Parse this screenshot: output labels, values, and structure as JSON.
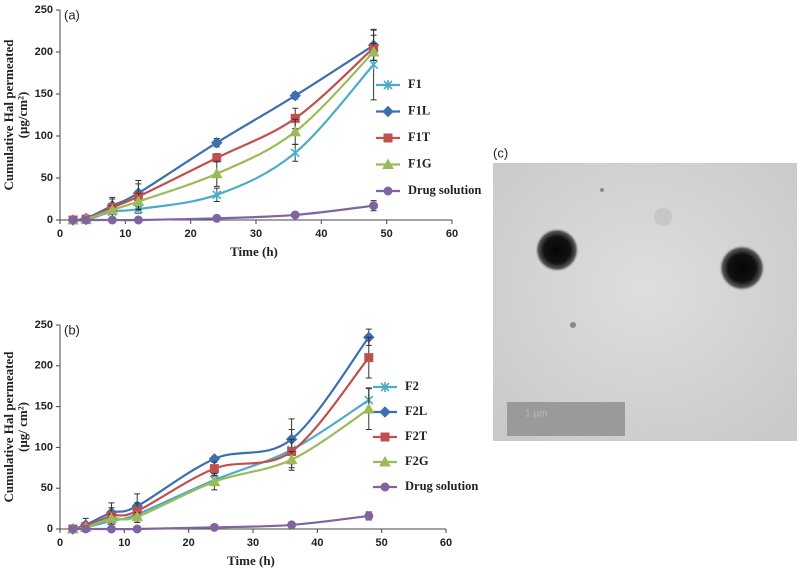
{
  "chart_data": [
    {
      "type": "line",
      "panel": "(a)",
      "xlabel": "Time (h)",
      "ylabel": [
        "Cumulative  Hal permeated",
        "(μg/cm²)"
      ],
      "x": [
        2,
        4,
        8,
        12,
        24,
        36,
        48
      ],
      "xlim": [
        0,
        60
      ],
      "xticks": [
        0,
        10,
        20,
        30,
        40,
        50,
        60
      ],
      "ylim": [
        0,
        250
      ],
      "yticks": [
        0,
        50,
        100,
        150,
        200,
        250
      ],
      "series": [
        {
          "name": "F1",
          "color": "#4bacc6",
          "marker": "star",
          "values": [
            0,
            0,
            10,
            13,
            30,
            80,
            185
          ],
          "errors": [
            0,
            0,
            3,
            5,
            8,
            10,
            42
          ]
        },
        {
          "name": "F1L",
          "color": "#3d6fb0",
          "marker": "diamond",
          "values": [
            0,
            2,
            17,
            32,
            92,
            148,
            208
          ],
          "errors": [
            0,
            2,
            8,
            15,
            5,
            4,
            18
          ]
        },
        {
          "name": "F1T",
          "color": "#c0504d",
          "marker": "square",
          "values": [
            0,
            1,
            15,
            28,
            74,
            121,
            205
          ],
          "errors": [
            0,
            1,
            12,
            15,
            5,
            12,
            15
          ]
        },
        {
          "name": "F1G",
          "color": "#9bbb59",
          "marker": "triangle",
          "values": [
            0,
            1,
            12,
            22,
            55,
            105,
            200
          ],
          "errors": [
            0,
            1,
            5,
            10,
            15,
            15,
            10
          ]
        },
        {
          "name": "Drug solution",
          "color": "#8064a2",
          "marker": "circle",
          "values": [
            0,
            0,
            0,
            0,
            2,
            6,
            17
          ],
          "errors": [
            0,
            0,
            0,
            0,
            1,
            2,
            6
          ]
        }
      ]
    },
    {
      "type": "line",
      "panel": "(b)",
      "xlabel": "Time (h)",
      "ylabel": [
        "Cumulative  Hal permeated",
        "(μg/ cm²)"
      ],
      "x": [
        2,
        4,
        8,
        12,
        24,
        36,
        48
      ],
      "xlim": [
        0,
        60
      ],
      "xticks": [
        0,
        10,
        20,
        30,
        40,
        50,
        60
      ],
      "ylim": [
        0,
        250
      ],
      "yticks": [
        0,
        50,
        100,
        150,
        200,
        250
      ],
      "series": [
        {
          "name": "F2",
          "color": "#4bacc6",
          "marker": "star",
          "values": [
            0,
            2,
            10,
            18,
            60,
            97,
            158
          ],
          "errors": [
            0,
            3,
            8,
            10,
            5,
            25,
            15
          ]
        },
        {
          "name": "F2L",
          "color": "#3d6fb0",
          "marker": "diamond",
          "values": [
            0,
            5,
            20,
            28,
            86,
            110,
            235
          ],
          "errors": [
            0,
            8,
            12,
            15,
            3,
            25,
            10
          ]
        },
        {
          "name": "F2T",
          "color": "#c0504d",
          "marker": "square",
          "values": [
            0,
            3,
            16,
            22,
            74,
            95,
            210
          ],
          "errors": [
            0,
            3,
            10,
            10,
            8,
            15,
            25
          ]
        },
        {
          "name": "F2G",
          "color": "#9bbb59",
          "marker": "triangle",
          "values": [
            0,
            2,
            13,
            15,
            58,
            85,
            147
          ],
          "errors": [
            0,
            2,
            5,
            5,
            10,
            10,
            25
          ]
        },
        {
          "name": "Drug solution",
          "color": "#8064a2",
          "marker": "circle",
          "values": [
            0,
            0,
            0,
            0,
            2,
            5,
            16
          ],
          "errors": [
            0,
            0,
            0,
            0,
            1,
            2,
            5
          ]
        }
      ]
    }
  ],
  "image_panel": {
    "label": "(c)",
    "scale_bar": "1 μm"
  }
}
